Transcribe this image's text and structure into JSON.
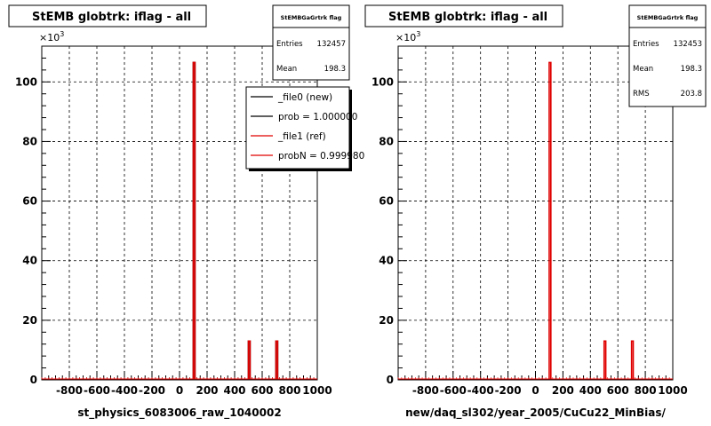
{
  "footer": "",
  "chart_data": [
    {
      "type": "bar",
      "title": "StEMB globtrk: iflag - all",
      "xlabel": "st_physics_6083006_raw_1040002",
      "ylabel": "",
      "y_exponent_label": "×10",
      "y_exponent_power": "3",
      "xlim": [
        -1000,
        1000
      ],
      "ylim": [
        0,
        112
      ],
      "x_ticks": [
        -800,
        -600,
        -400,
        -200,
        0,
        200,
        400,
        600,
        800,
        1000
      ],
      "y_ticks": [
        0,
        20,
        40,
        60,
        80,
        100
      ],
      "grid": true,
      "series": [
        {
          "name": "_file0 (new)",
          "color": "#000000",
          "x": [
            100,
            500,
            700
          ],
          "values": [
            106.5,
            13,
            13
          ]
        },
        {
          "name": "_file1 (ref)",
          "color": "#e00000",
          "x": [
            100,
            500,
            700
          ],
          "values": [
            106.5,
            13,
            13
          ]
        }
      ],
      "stats": {
        "header": "StEMBGaGrtrk flag",
        "entries_label": "Entries",
        "entries": "132457",
        "mean_label": "Mean",
        "mean": "198.3"
      },
      "legend": [
        {
          "label": "_file0 (new)",
          "color": "#000000"
        },
        {
          "label": "prob = 1.000000",
          "color": "#000000"
        },
        {
          "label": "_file1 (ref)",
          "color": "#e00000"
        },
        {
          "label": "probN = 0.999980",
          "color": "#e00000"
        }
      ]
    },
    {
      "type": "bar",
      "title": "StEMB globtrk: iflag - all",
      "xlabel": "new/daq_sl302/year_2005/CuCu22_MinBias/",
      "ylabel": "",
      "y_exponent_label": "×10",
      "y_exponent_power": "3",
      "xlim": [
        -1000,
        1000
      ],
      "ylim": [
        0,
        112
      ],
      "x_ticks": [
        -800,
        -600,
        -400,
        -200,
        0,
        200,
        400,
        600,
        800,
        1000
      ],
      "y_ticks": [
        0,
        20,
        40,
        60,
        80,
        100
      ],
      "grid": true,
      "series": [
        {
          "name": "",
          "color": "#e00000",
          "x": [
            100,
            500,
            700
          ],
          "values": [
            106.5,
            13,
            13
          ]
        }
      ],
      "stats": {
        "header": "StEMBGaGrtrk flag",
        "entries_label": "Entries",
        "entries": "132453",
        "mean_label": "Mean",
        "mean": "198.3",
        "rms_label": "RMS",
        "rms": "203.8"
      }
    }
  ]
}
